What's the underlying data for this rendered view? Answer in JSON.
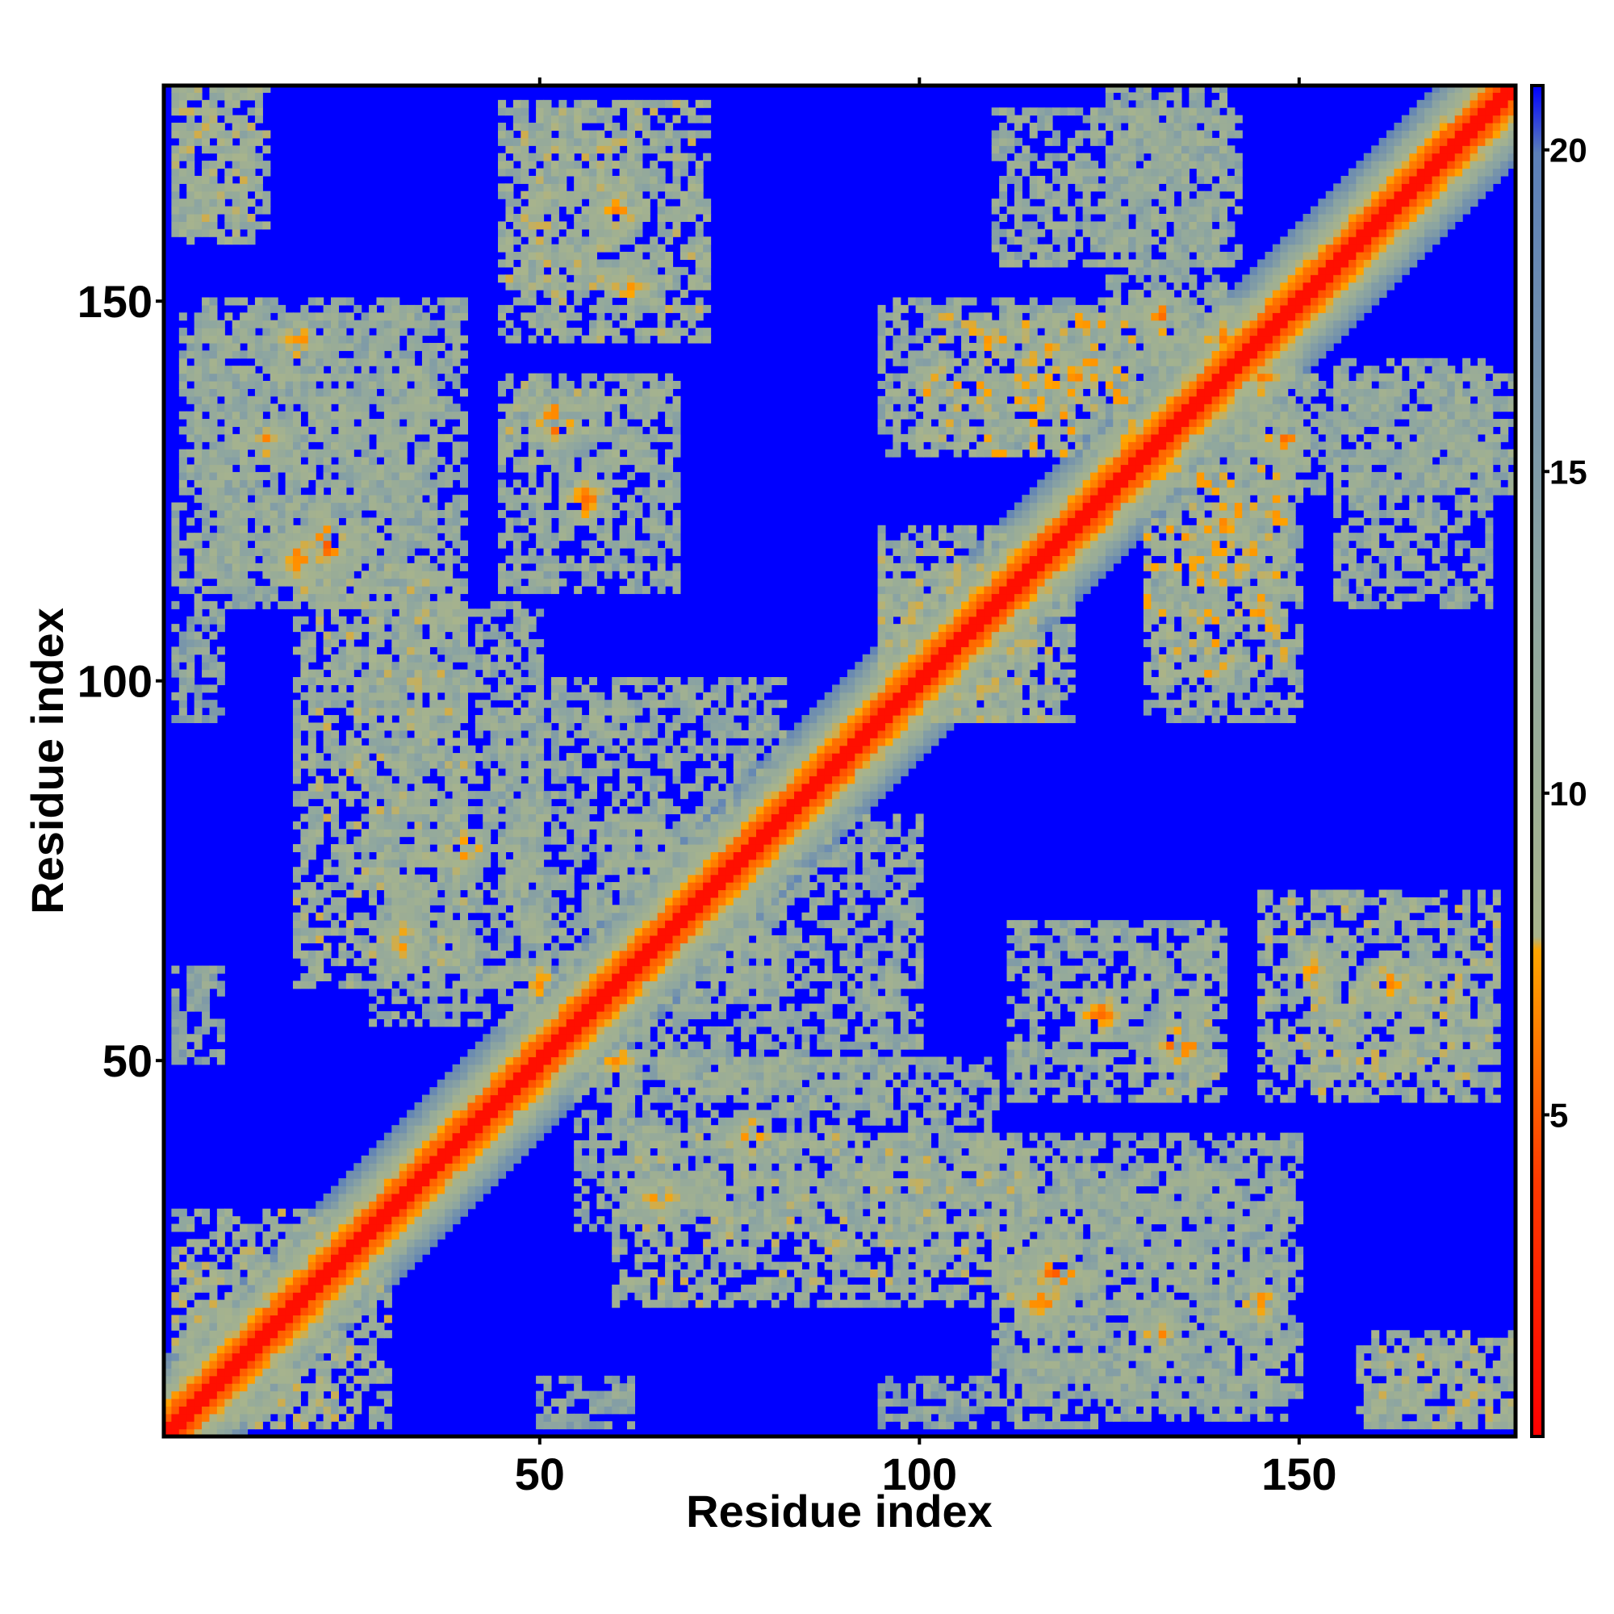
{
  "chart_data": {
    "type": "heatmap",
    "title": "",
    "xlabel": "Residue index",
    "ylabel": "Residue index",
    "xlim": [
      1,
      178
    ],
    "ylim": [
      1,
      178
    ],
    "n_residues": 178,
    "x_ticks": [
      50,
      100,
      150
    ],
    "y_ticks": [
      50,
      100,
      150
    ],
    "colorbar": {
      "ticks": [
        5,
        10,
        15,
        20
      ],
      "range": [
        0,
        21
      ],
      "orientation": "vertical",
      "placement": "right"
    },
    "colorscale": [
      {
        "value": 0,
        "color": "#ff0000"
      },
      {
        "value": 4,
        "color": "#ff3a00"
      },
      {
        "value": 7.5,
        "color": "#ffa500"
      },
      {
        "value": 8.5,
        "color": "#a8b48c"
      },
      {
        "value": 13,
        "color": "#8ea6a0"
      },
      {
        "value": 20,
        "color": "#5b7fb8"
      },
      {
        "value": 21,
        "color": "#0000ff"
      }
    ],
    "background_value": 21,
    "diagonal_band": {
      "core_value": 1,
      "half_width_residues": 10
    },
    "contact_regions": [
      {
        "x": [
          2,
          12
        ],
        "y": [
          158,
          178
        ],
        "value": 11
      },
      {
        "x": [
          48,
          62
        ],
        "y": [
          152,
          175
        ],
        "value": 11
      },
      {
        "x": [
          3,
          35
        ],
        "y": [
          125,
          148
        ],
        "value": 12
      },
      {
        "x": [
          45,
          65
        ],
        "y": [
          128,
          140
        ],
        "value": 11
      },
      {
        "x": [
          2,
          36
        ],
        "y": [
          112,
          124
        ],
        "value": 12
      },
      {
        "x": [
          2,
          8
        ],
        "y": [
          95,
          110
        ],
        "value": 13
      },
      {
        "x": [
          18,
          40
        ],
        "y": [
          60,
          115
        ],
        "value": 11
      },
      {
        "x": [
          45,
          82
        ],
        "y": [
          60,
          100
        ],
        "value": 12
      },
      {
        "x": [
          110,
          142
        ],
        "y": [
          155,
          175
        ],
        "value": 12
      },
      {
        "x": [
          95,
          150
        ],
        "y": [
          130,
          150
        ],
        "value": 12
      },
      {
        "x": [
          135,
          178
        ],
        "y": [
          125,
          140
        ],
        "value": 12
      },
      {
        "x": [
          95,
          115
        ],
        "y": [
          95,
          120
        ],
        "value": 11
      },
      {
        "x": [
          130,
          148
        ],
        "y": [
          100,
          128
        ],
        "value": 10
      },
      {
        "x": [
          112,
          140
        ],
        "y": [
          45,
          68
        ],
        "value": 12
      },
      {
        "x": [
          145,
          176
        ],
        "y": [
          45,
          72
        ],
        "value": 11
      },
      {
        "x": [
          55,
          110
        ],
        "y": [
          28,
          50
        ],
        "value": 12
      },
      {
        "x": [
          110,
          150
        ],
        "y": [
          5,
          40
        ],
        "value": 12
      },
      {
        "x": [
          160,
          178
        ],
        "y": [
          2,
          14
        ],
        "value": 11
      },
      {
        "x": [
          2,
          22
        ],
        "y": [
          2,
          30
        ],
        "value": 11
      },
      {
        "x": [
          2,
          8
        ],
        "y": [
          50,
          62
        ],
        "value": 13
      }
    ],
    "hotspots": [
      {
        "x": 56,
        "y": 124,
        "value": 4
      },
      {
        "x": 18,
        "y": 116,
        "value": 5
      },
      {
        "x": 14,
        "y": 132,
        "value": 5
      },
      {
        "x": 66,
        "y": 32,
        "value": 5
      },
      {
        "x": 118,
        "y": 22,
        "value": 4
      },
      {
        "x": 134,
        "y": 52,
        "value": 4
      },
      {
        "x": 152,
        "y": 62,
        "value": 5
      },
      {
        "x": 132,
        "y": 148,
        "value": 5
      },
      {
        "x": 145,
        "y": 140,
        "value": 5
      },
      {
        "x": 120,
        "y": 140,
        "value": 5
      },
      {
        "x": 60,
        "y": 162,
        "value": 5
      },
      {
        "x": 40,
        "y": 78,
        "value": 5
      },
      {
        "x": 50,
        "y": 60,
        "value": 5
      },
      {
        "x": 145,
        "y": 18,
        "value": 5
      }
    ]
  }
}
